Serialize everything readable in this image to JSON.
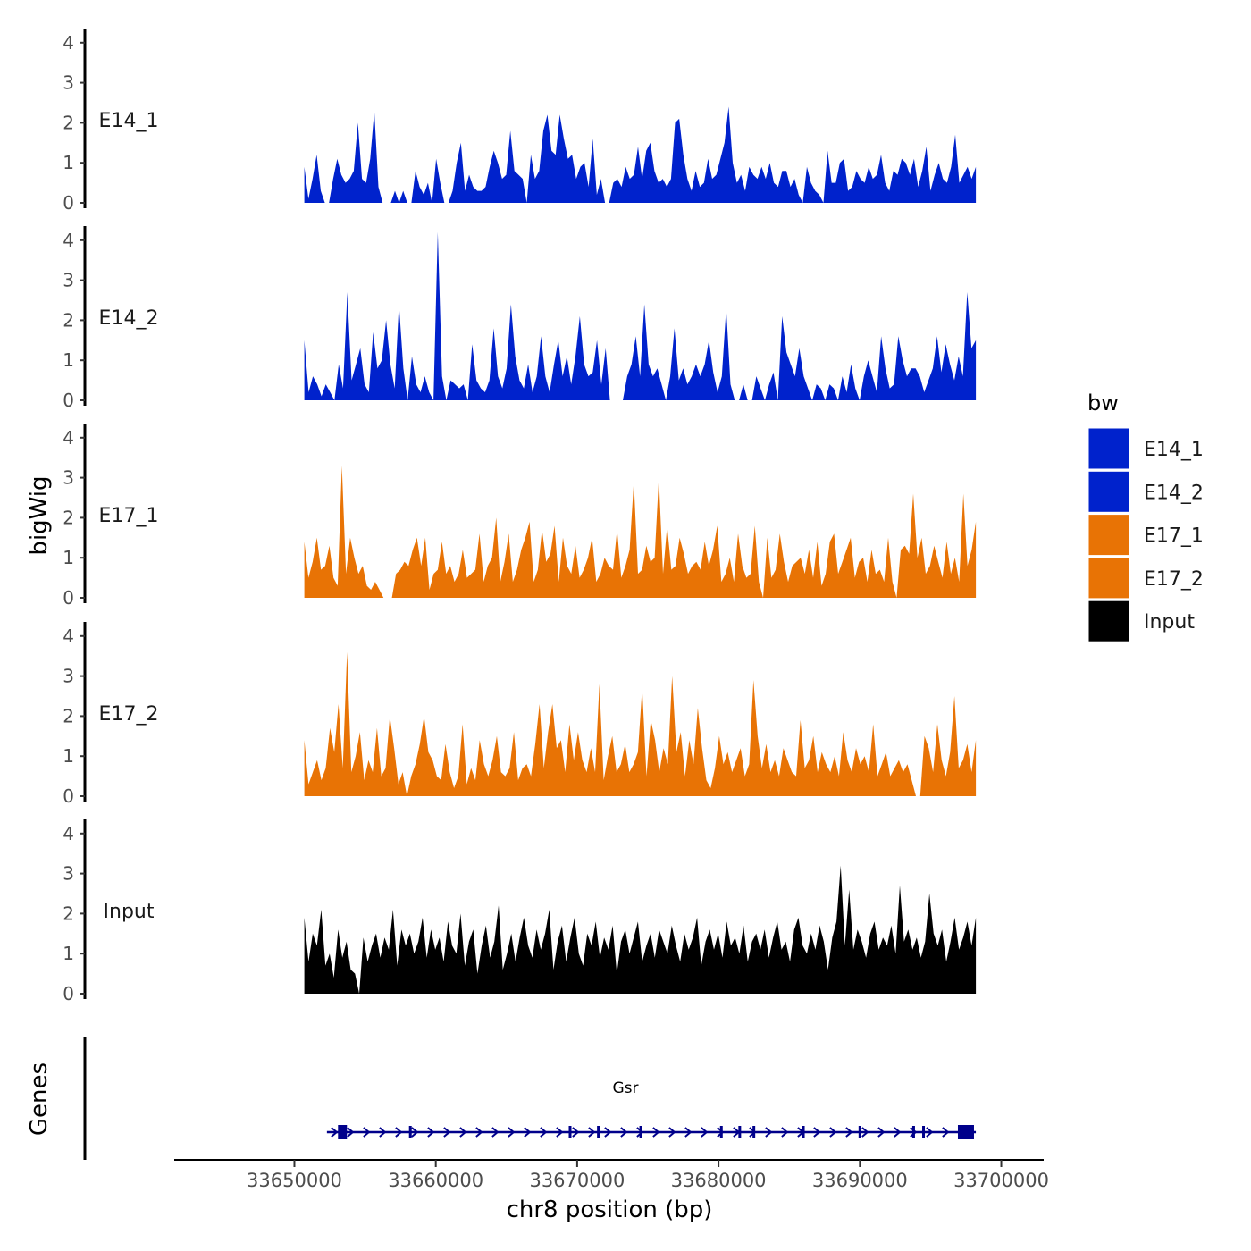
{
  "chart_data": {
    "type": "area",
    "ylabel": "bigWig",
    "xlabel": "chr8 position (bp)",
    "ylim": [
      0,
      4.3
    ],
    "xlim": [
      33641500,
      33703000
    ],
    "x_ticks": [
      33650000,
      33660000,
      33670000,
      33680000,
      33690000,
      33700000
    ],
    "x_tick_labels": [
      "33650000",
      "33660000",
      "33670000",
      "33680000",
      "33690000",
      "33700000"
    ],
    "y_ticks": [
      0,
      1,
      2,
      3,
      4
    ],
    "y_tick_labels": [
      "0",
      "1",
      "2",
      "3",
      "4"
    ],
    "signal_range_bp": [
      33650700,
      33698200
    ],
    "legend": {
      "title": "bw",
      "position": "right",
      "entries": [
        {
          "label": "E14_1",
          "color": "#0022CC"
        },
        {
          "label": "E14_2",
          "color": "#0022CC"
        },
        {
          "label": "E17_1",
          "color": "#E87305"
        },
        {
          "label": "E17_2",
          "color": "#E87305"
        },
        {
          "label": "Input",
          "color": "#000000"
        }
      ]
    },
    "series": [
      {
        "name": "E14_1",
        "color": "#0022CC",
        "values": [
          0.9,
          0.1,
          0.6,
          1.2,
          0.3,
          0.0,
          0.0,
          0.6,
          1.1,
          0.7,
          0.5,
          0.6,
          0.8,
          2.0,
          0.6,
          0.5,
          1.1,
          2.3,
          0.4,
          0.0,
          0.0,
          0.0,
          0.3,
          0.0,
          0.3,
          0.0,
          0.0,
          0.8,
          0.4,
          0.2,
          0.5,
          0.0,
          1.1,
          0.5,
          0.0,
          0.0,
          0.3,
          1.0,
          1.5,
          0.3,
          0.7,
          0.4,
          0.3,
          0.3,
          0.4,
          0.9,
          1.3,
          1.0,
          0.6,
          0.7,
          1.8,
          0.8,
          0.7,
          0.6,
          0.0,
          1.2,
          0.6,
          0.8,
          1.8,
          2.2,
          1.3,
          1.2,
          2.2,
          1.6,
          1.1,
          1.2,
          0.6,
          0.9,
          1.0,
          0.4,
          1.6,
          0.2,
          0.6,
          0.0,
          0.0,
          0.5,
          0.6,
          0.4,
          0.9,
          0.6,
          0.7,
          1.4,
          0.6,
          1.3,
          1.5,
          0.8,
          0.5,
          0.6,
          0.4,
          0.6,
          2.0,
          2.1,
          1.2,
          0.6,
          0.3,
          0.8,
          0.4,
          0.5,
          1.1,
          0.6,
          0.7,
          1.1,
          1.5,
          2.4,
          1.0,
          0.5,
          0.7,
          0.3,
          0.9,
          0.7,
          0.6,
          0.9,
          0.6,
          1.0,
          0.5,
          0.4,
          0.8,
          0.8,
          0.4,
          0.6,
          0.2,
          0.0,
          0.9,
          0.5,
          0.3,
          0.2,
          0.0,
          1.3,
          0.5,
          0.5,
          1.0,
          1.1,
          0.3,
          0.4,
          0.8,
          0.6,
          0.5,
          0.9,
          0.6,
          0.7,
          1.2,
          0.5,
          0.3,
          0.8,
          0.7,
          1.1,
          1.0,
          0.7,
          1.1,
          0.4,
          0.8,
          1.4,
          0.3,
          0.7,
          1.0,
          0.6,
          0.5,
          0.9,
          1.7,
          0.5,
          0.7,
          0.9,
          0.6,
          0.9
        ]
      },
      {
        "name": "E14_2",
        "color": "#0022CC",
        "values": [
          1.5,
          0.2,
          0.6,
          0.4,
          0.1,
          0.4,
          0.2,
          0.0,
          0.9,
          0.3,
          2.7,
          0.5,
          0.9,
          1.3,
          0.4,
          0.2,
          1.7,
          0.8,
          1.0,
          2.0,
          0.9,
          0.3,
          2.4,
          0.8,
          0.0,
          1.1,
          0.4,
          0.2,
          0.6,
          0.2,
          0.0,
          4.2,
          0.6,
          0.0,
          0.5,
          0.4,
          0.3,
          0.4,
          0.0,
          1.4,
          0.5,
          0.3,
          0.2,
          0.5,
          1.8,
          0.6,
          0.3,
          0.8,
          2.4,
          1.1,
          0.5,
          0.3,
          0.9,
          0.2,
          0.6,
          1.6,
          0.6,
          0.2,
          0.9,
          1.5,
          0.6,
          1.1,
          0.4,
          1.1,
          2.1,
          0.9,
          0.6,
          0.7,
          1.5,
          0.4,
          1.3,
          0.0,
          0.0,
          0.0,
          0.0,
          0.6,
          0.9,
          1.6,
          0.6,
          2.4,
          0.9,
          0.6,
          0.8,
          0.4,
          0.0,
          0.6,
          1.8,
          0.5,
          0.8,
          0.4,
          0.6,
          0.9,
          0.6,
          0.9,
          1.5,
          0.7,
          0.2,
          0.6,
          2.3,
          0.4,
          0.0,
          0.0,
          0.4,
          0.0,
          0.0,
          0.6,
          0.3,
          0.0,
          0.4,
          0.7,
          0.0,
          2.1,
          1.2,
          0.9,
          0.6,
          1.3,
          0.6,
          0.3,
          0.0,
          0.4,
          0.3,
          0.0,
          0.4,
          0.3,
          0.0,
          0.6,
          0.2,
          0.9,
          0.3,
          0.0,
          0.6,
          1.0,
          0.6,
          0.2,
          1.6,
          0.8,
          0.3,
          0.4,
          1.6,
          1.0,
          0.6,
          0.8,
          0.8,
          0.6,
          0.2,
          0.5,
          0.8,
          1.6,
          0.7,
          1.4,
          0.9,
          0.5,
          1.1,
          0.6,
          2.7,
          1.3,
          1.5
        ]
      },
      {
        "name": "E17_1",
        "color": "#E87305",
        "values": [
          1.4,
          0.5,
          0.9,
          1.5,
          0.7,
          0.8,
          1.3,
          0.5,
          0.3,
          3.3,
          0.6,
          1.5,
          1.0,
          0.6,
          0.8,
          0.3,
          0.2,
          0.4,
          0.2,
          0.0,
          0.0,
          0.0,
          0.6,
          0.7,
          0.9,
          0.8,
          1.2,
          1.5,
          0.8,
          1.5,
          0.2,
          0.6,
          0.7,
          1.4,
          0.6,
          0.8,
          0.4,
          0.6,
          1.2,
          0.5,
          0.6,
          0.7,
          1.6,
          0.4,
          0.8,
          1.0,
          2.0,
          0.4,
          0.9,
          1.6,
          0.4,
          0.7,
          1.2,
          1.5,
          1.9,
          0.4,
          0.7,
          1.7,
          0.9,
          1.1,
          1.8,
          0.4,
          1.5,
          0.8,
          0.6,
          1.3,
          0.5,
          0.7,
          1.0,
          1.5,
          0.4,
          0.6,
          1.0,
          0.8,
          0.7,
          1.7,
          0.5,
          0.8,
          1.2,
          2.9,
          0.6,
          0.7,
          1.3,
          0.9,
          1.0,
          3.0,
          0.6,
          1.8,
          0.7,
          0.8,
          1.5,
          1.1,
          0.6,
          0.8,
          0.9,
          0.7,
          1.4,
          0.8,
          1.2,
          1.8,
          0.4,
          0.6,
          1.0,
          0.4,
          1.6,
          0.8,
          0.5,
          0.6,
          1.8,
          0.4,
          0.0,
          1.5,
          0.5,
          0.7,
          1.6,
          0.9,
          0.4,
          0.8,
          0.9,
          1.0,
          0.6,
          1.2,
          0.5,
          1.4,
          0.3,
          0.6,
          1.4,
          1.6,
          0.6,
          0.9,
          1.2,
          1.5,
          0.5,
          0.9,
          1.0,
          0.4,
          1.2,
          0.6,
          0.7,
          0.4,
          1.5,
          0.4,
          0.0,
          1.2,
          1.3,
          1.1,
          2.6,
          1.0,
          1.5,
          0.6,
          0.8,
          1.3,
          0.9,
          0.5,
          1.4,
          0.6,
          1.0,
          0.4,
          2.6,
          0.8,
          1.2,
          1.9
        ]
      },
      {
        "name": "E17_2",
        "color": "#E87305",
        "values": [
          1.4,
          0.3,
          0.6,
          0.9,
          0.4,
          0.7,
          1.7,
          1.1,
          2.3,
          0.7,
          3.6,
          0.6,
          1.0,
          1.6,
          0.4,
          0.9,
          0.6,
          1.7,
          0.5,
          0.7,
          2.0,
          1.2,
          0.3,
          0.6,
          0.0,
          0.5,
          0.8,
          1.3,
          2.0,
          1.1,
          0.9,
          0.5,
          0.4,
          1.3,
          0.6,
          0.2,
          0.5,
          1.8,
          0.3,
          0.7,
          0.4,
          1.4,
          0.8,
          0.5,
          0.9,
          1.5,
          0.6,
          0.5,
          0.7,
          1.6,
          0.4,
          0.7,
          0.8,
          0.5,
          1.3,
          2.3,
          0.7,
          1.6,
          2.3,
          1.2,
          1.4,
          0.6,
          1.8,
          0.9,
          1.6,
          0.9,
          0.6,
          1.2,
          0.6,
          2.8,
          0.4,
          1.0,
          1.5,
          0.6,
          0.8,
          1.3,
          0.6,
          0.8,
          1.1,
          2.7,
          0.5,
          1.9,
          1.4,
          0.6,
          1.2,
          0.8,
          3.0,
          1.1,
          1.6,
          0.5,
          1.4,
          0.8,
          2.2,
          1.2,
          0.4,
          0.2,
          0.7,
          1.5,
          0.8,
          1.1,
          0.6,
          0.9,
          1.2,
          0.5,
          0.8,
          2.9,
          1.5,
          0.7,
          1.3,
          0.6,
          0.9,
          0.5,
          1.2,
          0.9,
          0.6,
          0.5,
          1.9,
          0.7,
          0.9,
          1.5,
          0.6,
          1.1,
          0.8,
          0.6,
          1.0,
          0.5,
          1.6,
          0.9,
          0.6,
          1.2,
          0.8,
          1.0,
          0.6,
          1.8,
          0.5,
          0.8,
          1.1,
          0.5,
          0.7,
          0.9,
          0.6,
          0.8,
          0.4,
          0.0,
          0.0,
          1.5,
          1.2,
          0.6,
          1.8,
          0.9,
          0.5,
          1.1,
          2.5,
          0.7,
          0.9,
          1.3,
          0.6,
          1.4
        ]
      },
      {
        "name": "Input",
        "color": "#000000",
        "values": [
          1.9,
          0.8,
          1.5,
          1.2,
          2.1,
          0.7,
          1.0,
          0.4,
          1.6,
          0.9,
          1.3,
          0.6,
          0.5,
          0.0,
          1.4,
          0.8,
          1.2,
          1.5,
          0.9,
          1.4,
          1.1,
          2.1,
          0.7,
          1.6,
          1.2,
          1.5,
          1.0,
          1.3,
          1.9,
          0.9,
          1.6,
          1.1,
          1.4,
          0.8,
          1.8,
          1.2,
          1.0,
          2.0,
          0.7,
          1.3,
          1.6,
          0.5,
          1.2,
          1.7,
          0.9,
          1.3,
          2.2,
          0.6,
          1.0,
          1.5,
          0.8,
          1.4,
          1.9,
          1.2,
          0.9,
          1.6,
          1.1,
          1.5,
          2.1,
          0.6,
          1.3,
          1.7,
          0.8,
          1.4,
          1.9,
          1.0,
          0.7,
          1.5,
          1.2,
          1.8,
          0.9,
          1.4,
          1.1,
          1.7,
          0.5,
          1.3,
          1.6,
          1.0,
          1.4,
          1.8,
          0.8,
          1.2,
          1.5,
          0.9,
          1.6,
          1.3,
          1.0,
          1.7,
          1.2,
          0.8,
          1.5,
          1.1,
          1.4,
          1.9,
          0.7,
          1.3,
          1.6,
          1.1,
          1.5,
          0.9,
          1.8,
          1.2,
          1.4,
          1.0,
          1.7,
          0.8,
          1.3,
          1.5,
          1.1,
          1.6,
          0.9,
          1.4,
          1.8,
          1.1,
          1.3,
          0.8,
          1.6,
          1.9,
          1.2,
          1.0,
          1.5,
          1.1,
          1.7,
          1.3,
          0.6,
          1.4,
          1.8,
          3.2,
          1.2,
          2.6,
          1.1,
          1.6,
          1.3,
          0.9,
          1.5,
          1.8,
          1.1,
          1.4,
          1.2,
          1.7,
          1.0,
          2.7,
          1.3,
          1.6,
          1.1,
          1.4,
          0.9,
          1.3,
          2.5,
          1.5,
          1.2,
          1.6,
          0.8,
          1.3,
          1.9,
          1.1,
          1.4,
          1.8,
          1.2,
          1.9
        ]
      }
    ],
    "genes_track": {
      "title": "Genes",
      "gene_label": "Gsr",
      "strand": "+",
      "start_bp": 33652300,
      "end_bp": 33698200,
      "exons_bp": [
        33653400,
        33658200,
        33669500,
        33671500,
        33674500,
        33680200,
        33681500,
        33682500,
        33686000,
        33690000,
        33693800,
        33694500,
        33697500
      ]
    }
  }
}
